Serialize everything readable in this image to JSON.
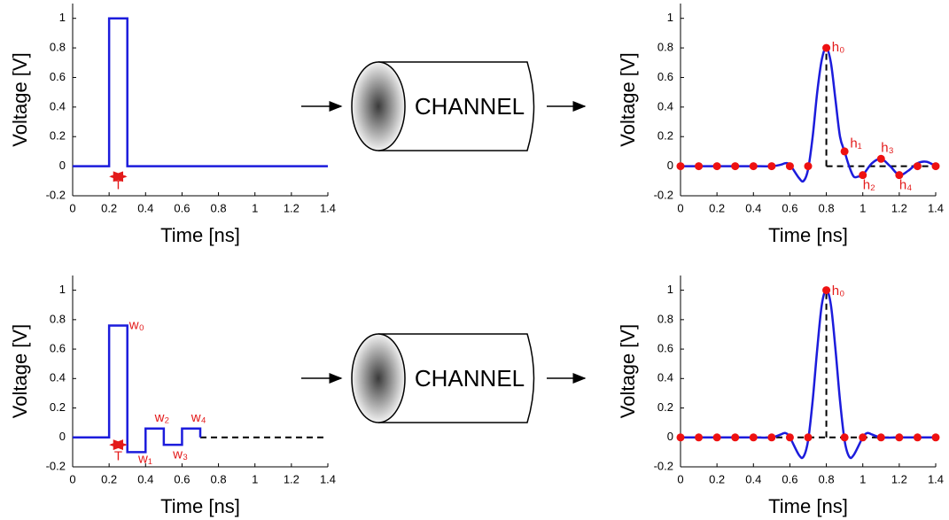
{
  "chart_data": [
    {
      "type": "line",
      "xlabel": "Time [ns]",
      "ylabel": "Voltage [V]",
      "xlim": [
        0,
        1.4
      ],
      "ylim": [
        -0.2,
        1.1
      ],
      "xticks": [
        0,
        0.2,
        0.4,
        0.6,
        0.8,
        1,
        1.2,
        1.4
      ],
      "yticks": [
        -0.2,
        0,
        0.2,
        0.4,
        0.6,
        0.8,
        1
      ],
      "series": [
        {
          "color": "#1c1cdc",
          "interpolation": "linear",
          "x": [
            0,
            0.2,
            0.2,
            0.3,
            0.3,
            1.4
          ],
          "values": [
            0,
            0,
            1,
            1,
            0,
            0
          ]
        }
      ],
      "annotations": [
        "T"
      ]
    },
    {
      "type": "line",
      "xlabel": "Time [ns]",
      "ylabel": "Voltage [V]",
      "xlim": [
        0,
        1.4
      ],
      "ylim": [
        -0.2,
        1.1
      ],
      "xticks": [
        0,
        0.2,
        0.4,
        0.6,
        0.8,
        1,
        1.2,
        1.4
      ],
      "yticks": [
        -0.2,
        0,
        0.2,
        0.4,
        0.6,
        0.8,
        1
      ],
      "series": [
        {
          "color": "#1c1cdc",
          "interpolation": "linear",
          "x": [
            0,
            0.2,
            0.2,
            0.3,
            0.3,
            0.4,
            0.4,
            0.5,
            0.5,
            0.6,
            0.6,
            0.7,
            0.7
          ],
          "values": [
            0,
            0,
            0.76,
            0.76,
            -0.1,
            -0.1,
            0.06,
            0.06,
            -0.05,
            -0.05,
            0.06,
            0.06,
            0
          ]
        }
      ],
      "annotations": [
        "w₀",
        "w₁",
        "w₂",
        "w₃",
        "w₄",
        "T"
      ]
    },
    {
      "type": "line",
      "xlabel": "Time [ns]",
      "ylabel": "Voltage [V]",
      "xlim": [
        0,
        1.4
      ],
      "ylim": [
        -0.2,
        1.1
      ],
      "xticks": [
        0,
        0.2,
        0.4,
        0.6,
        0.8,
        1,
        1.2,
        1.4
      ],
      "yticks": [
        -0.2,
        0,
        0.2,
        0.4,
        0.6,
        0.8,
        1
      ],
      "series": [
        {
          "color": "#1c1cdc",
          "interpolation": "smooth",
          "x": [
            0,
            0.1,
            0.2,
            0.3,
            0.4,
            0.5,
            0.55,
            0.575,
            0.6,
            0.65,
            0.675,
            0.7,
            0.725,
            0.75,
            0.775,
            0.8,
            0.825,
            0.85,
            0.875,
            0.9,
            0.925,
            0.95,
            0.975,
            1.0,
            1.05,
            1.1,
            1.15,
            1.2,
            1.25,
            1.3,
            1.35,
            1.4
          ],
          "values": [
            0,
            0,
            0,
            0,
            0,
            0,
            0.01,
            0.02,
            0.01,
            -0.08,
            -0.1,
            -0.02,
            0.2,
            0.5,
            0.72,
            0.8,
            0.7,
            0.45,
            0.2,
            0.1,
            0.0,
            -0.07,
            -0.07,
            -0.06,
            0.02,
            0.05,
            0.0,
            -0.06,
            -0.03,
            0.02,
            0.03,
            0
          ]
        },
        {
          "color": "#ee1111",
          "marker": "dot",
          "x": [
            0,
            0.1,
            0.2,
            0.3,
            0.4,
            0.5,
            0.6,
            0.7,
            0.8,
            0.9,
            1.0,
            1.1,
            1.2,
            1.3,
            1.4
          ],
          "values": [
            0,
            0,
            0,
            0,
            0,
            0,
            0,
            0,
            0.8,
            0.1,
            -0.06,
            0.05,
            -0.06,
            0,
            0
          ]
        }
      ],
      "annotations": [
        "h₀",
        "h₁",
        "h₂",
        "h₃",
        "h₄"
      ]
    },
    {
      "type": "line",
      "xlabel": "Time [ns]",
      "ylabel": "Voltage [V]",
      "xlim": [
        0,
        1.4
      ],
      "ylim": [
        -0.2,
        1.1
      ],
      "xticks": [
        0,
        0.2,
        0.4,
        0.6,
        0.8,
        1,
        1.2,
        1.4
      ],
      "yticks": [
        -0.2,
        0,
        0.2,
        0.4,
        0.6,
        0.8,
        1
      ],
      "series": [
        {
          "color": "#1c1cdc",
          "interpolation": "smooth",
          "x": [
            0,
            0.1,
            0.2,
            0.3,
            0.4,
            0.5,
            0.55,
            0.575,
            0.6,
            0.65,
            0.675,
            0.7,
            0.725,
            0.75,
            0.775,
            0.8,
            0.825,
            0.85,
            0.875,
            0.9,
            0.925,
            0.95,
            1.0,
            1.025,
            1.05,
            1.1,
            1.2,
            1.3,
            1.4
          ],
          "values": [
            0,
            0,
            0,
            0,
            0,
            0,
            0.02,
            0.03,
            0.0,
            -0.12,
            -0.13,
            -0.02,
            0.25,
            0.6,
            0.9,
            1.0,
            0.9,
            0.6,
            0.25,
            -0.02,
            -0.13,
            -0.12,
            0.0,
            0.03,
            0.02,
            0,
            0,
            0,
            0
          ]
        },
        {
          "color": "#ee1111",
          "marker": "dot",
          "x": [
            0,
            0.1,
            0.2,
            0.3,
            0.4,
            0.5,
            0.6,
            0.7,
            0.8,
            0.9,
            1.0,
            1.1,
            1.2,
            1.3,
            1.4
          ],
          "values": [
            0,
            0,
            0,
            0,
            0,
            0,
            0,
            0,
            1,
            0,
            0,
            0,
            0,
            0,
            0
          ]
        }
      ],
      "annotations": [
        "h₀"
      ]
    }
  ],
  "diagram": {
    "channels": [
      "CHANNEL",
      "CHANNEL"
    ]
  }
}
